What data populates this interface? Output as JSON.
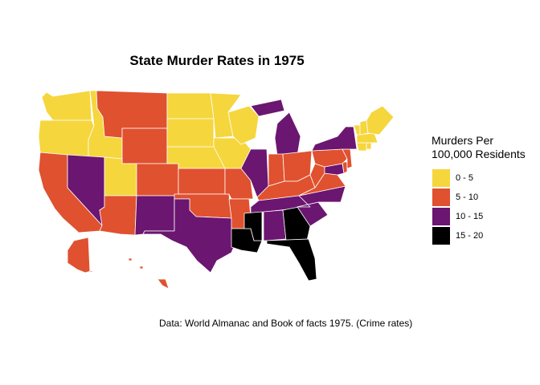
{
  "title": "State Murder Rates in 1975",
  "caption": "Data: World Almanac and Book of facts 1975. (Crime rates)",
  "legend": {
    "title_line1": "Murders Per",
    "title_line2": "100,000 Residents",
    "items": [
      {
        "label": "0 - 5",
        "color": "#f5d63d"
      },
      {
        "label": "5 - 10",
        "color": "#e0512f"
      },
      {
        "label": "10 - 15",
        "color": "#6b1670"
      },
      {
        "label": "15 - 20",
        "color": "#000000"
      }
    ]
  },
  "states": [
    {
      "name": "Washington",
      "bin": 0
    },
    {
      "name": "Oregon",
      "bin": 0
    },
    {
      "name": "California",
      "bin": 1
    },
    {
      "name": "Idaho",
      "bin": 0
    },
    {
      "name": "Nevada",
      "bin": 2
    },
    {
      "name": "Montana",
      "bin": 1
    },
    {
      "name": "Wyoming",
      "bin": 1
    },
    {
      "name": "Utah",
      "bin": 0
    },
    {
      "name": "Arizona",
      "bin": 1
    },
    {
      "name": "Colorado",
      "bin": 1
    },
    {
      "name": "New Mexico",
      "bin": 2
    },
    {
      "name": "North Dakota",
      "bin": 0
    },
    {
      "name": "South Dakota",
      "bin": 0
    },
    {
      "name": "Nebraska",
      "bin": 0
    },
    {
      "name": "Kansas",
      "bin": 1
    },
    {
      "name": "Oklahoma",
      "bin": 1
    },
    {
      "name": "Texas",
      "bin": 2
    },
    {
      "name": "Minnesota",
      "bin": 0
    },
    {
      "name": "Iowa",
      "bin": 0
    },
    {
      "name": "Missouri",
      "bin": 1
    },
    {
      "name": "Arkansas",
      "bin": 1
    },
    {
      "name": "Louisiana",
      "bin": 3
    },
    {
      "name": "Wisconsin",
      "bin": 0
    },
    {
      "name": "Illinois",
      "bin": 2
    },
    {
      "name": "Michigan",
      "bin": 2
    },
    {
      "name": "Indiana",
      "bin": 1
    },
    {
      "name": "Ohio",
      "bin": 1
    },
    {
      "name": "Kentucky",
      "bin": 1
    },
    {
      "name": "Tennessee",
      "bin": 2
    },
    {
      "name": "Mississippi",
      "bin": 3
    },
    {
      "name": "Alabama",
      "bin": 2
    },
    {
      "name": "Georgia",
      "bin": 3
    },
    {
      "name": "Florida",
      "bin": 3
    },
    {
      "name": "South Carolina",
      "bin": 2
    },
    {
      "name": "North Carolina",
      "bin": 2
    },
    {
      "name": "Virginia",
      "bin": 1
    },
    {
      "name": "West Virginia",
      "bin": 1
    },
    {
      "name": "Maryland",
      "bin": 2
    },
    {
      "name": "Delaware",
      "bin": 1
    },
    {
      "name": "Pennsylvania",
      "bin": 1
    },
    {
      "name": "New Jersey",
      "bin": 1
    },
    {
      "name": "New York",
      "bin": 2
    },
    {
      "name": "Connecticut",
      "bin": 0
    },
    {
      "name": "Rhode Island",
      "bin": 0
    },
    {
      "name": "Massachusetts",
      "bin": 0
    },
    {
      "name": "Vermont",
      "bin": 0
    },
    {
      "name": "New Hampshire",
      "bin": 0
    },
    {
      "name": "Maine",
      "bin": 0
    },
    {
      "name": "Alaska",
      "bin": 1
    },
    {
      "name": "Hawaii",
      "bin": 1
    }
  ]
}
